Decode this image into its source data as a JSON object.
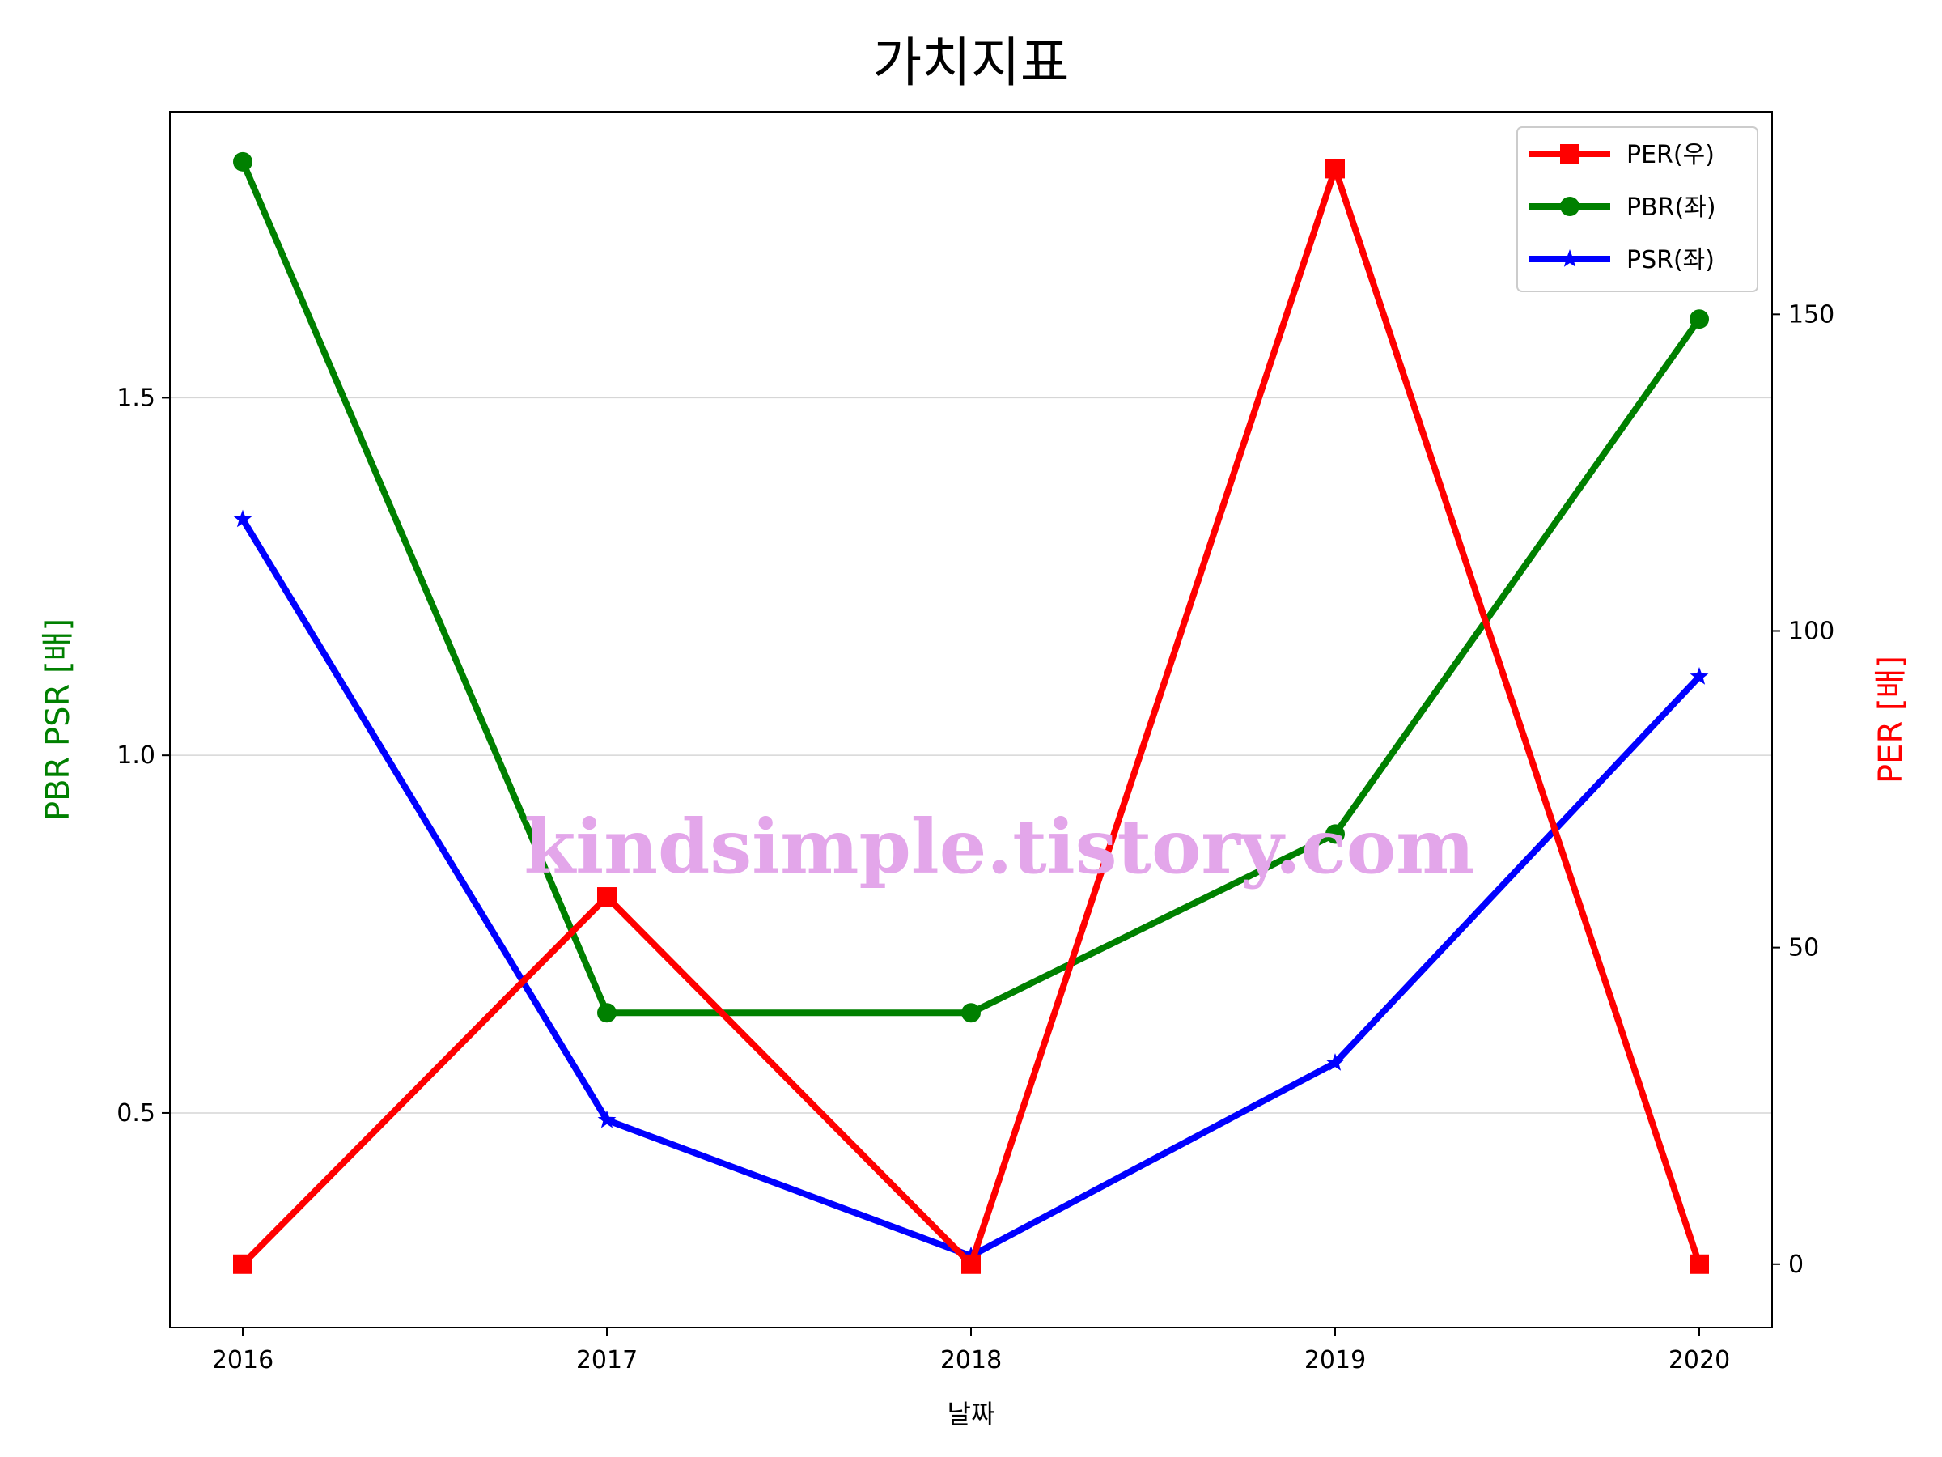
{
  "chart_data": {
    "type": "line",
    "title": "가치지표",
    "xlabel": "날짜",
    "ylabel_left": "PBR PSR [배]",
    "ylabel_right": "PER [배]",
    "categories": [
      "2016",
      "2017",
      "2018",
      "2019",
      "2020"
    ],
    "y_left_ticks": [
      "0.5",
      "1.0",
      "1.5"
    ],
    "y_left_range": [
      0.2,
      1.9
    ],
    "y_right_ticks": [
      "0",
      "50",
      "100",
      "150"
    ],
    "y_right_range": [
      -10,
      182
    ],
    "grid": "horizontal, left axis",
    "legend_position": "top-right",
    "series": [
      {
        "name": "PER(우)",
        "axis": "right",
        "color": "#ff0000",
        "marker": "square",
        "values": [
          0,
          58,
          0,
          173,
          0
        ]
      },
      {
        "name": "PBR(좌)",
        "axis": "left",
        "color": "#008000",
        "marker": "circle",
        "values": [
          1.83,
          0.64,
          0.64,
          0.89,
          1.61
        ]
      },
      {
        "name": "PSR(좌)",
        "axis": "left",
        "color": "#0000ff",
        "marker": "star",
        "values": [
          1.33,
          0.49,
          0.3,
          0.57,
          1.11
        ]
      }
    ],
    "watermark": "kindsimple.tistory.com"
  }
}
